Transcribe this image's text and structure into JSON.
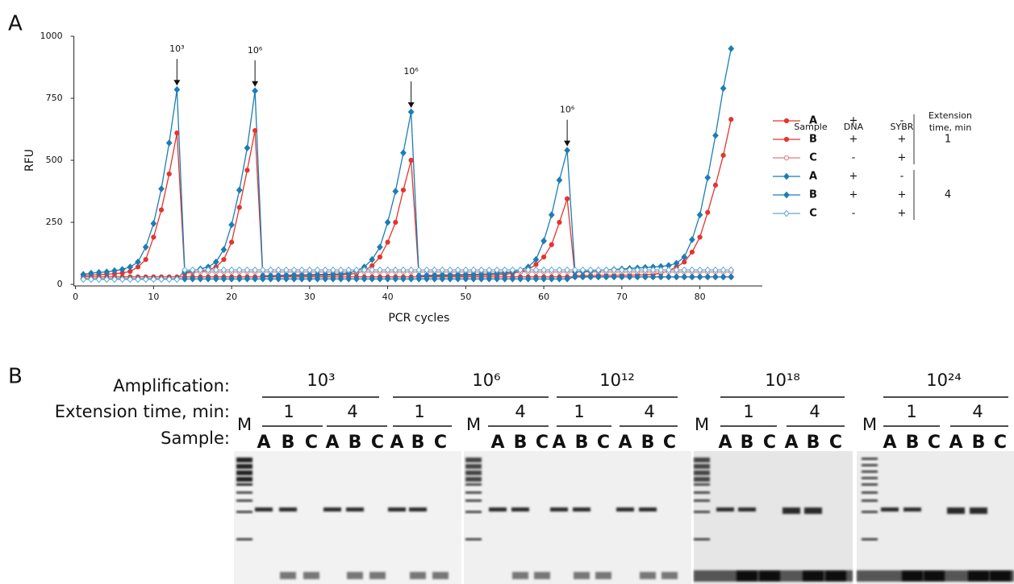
{
  "chart_data": {
    "type": "line",
    "panel": "A",
    "x_label": "PCR cycles",
    "y_label": "RFU",
    "xlim": [
      0,
      88
    ],
    "ylim": [
      0,
      1000
    ],
    "xticks": [
      0,
      10,
      20,
      30,
      40,
      50,
      60,
      70,
      80
    ],
    "yticks": [
      0,
      250,
      500,
      750,
      1000
    ],
    "grid": false,
    "x": [
      1,
      2,
      3,
      4,
      5,
      6,
      7,
      8,
      9,
      10,
      11,
      12,
      13,
      14,
      15,
      16,
      17,
      18,
      19,
      20,
      21,
      22,
      23,
      24,
      25,
      26,
      27,
      28,
      29,
      30,
      31,
      32,
      33,
      34,
      35,
      36,
      37,
      38,
      39,
      40,
      41,
      42,
      43,
      44,
      45,
      46,
      47,
      48,
      49,
      50,
      51,
      52,
      53,
      54,
      55,
      56,
      57,
      58,
      59,
      60,
      61,
      62,
      63,
      64,
      65,
      66,
      67,
      68,
      69,
      70,
      71,
      72,
      73,
      74,
      75,
      76,
      77,
      78,
      79,
      80,
      81,
      82,
      83,
      84
    ],
    "legend_headers": [
      "Sample",
      "DNA",
      "SYBR"
    ],
    "legend_group_header": [
      "Extension",
      "time, min"
    ],
    "series": [
      {
        "name": "A",
        "dna": "+",
        "sybr": "-",
        "color": "#e4352f",
        "marker": "circle",
        "fill": "solid",
        "values": [
          30,
          30,
          30,
          30,
          30,
          30,
          30,
          30,
          30,
          30,
          30,
          30,
          30,
          30,
          30,
          30,
          30,
          30,
          30,
          30,
          30,
          30,
          30,
          30,
          30,
          30,
          30,
          30,
          30,
          30,
          30,
          30,
          30,
          30,
          30,
          30,
          30,
          30,
          30,
          30,
          30,
          30,
          30,
          30,
          30,
          30,
          30,
          30,
          30,
          30,
          30,
          30,
          30,
          30,
          30,
          30,
          30,
          30,
          30,
          30,
          30,
          30,
          30,
          30,
          30,
          30,
          30,
          30,
          30,
          30,
          30,
          30,
          30,
          30,
          30,
          30,
          30,
          30,
          30,
          30,
          30,
          30,
          30,
          30
        ]
      },
      {
        "name": "B",
        "dna": "+",
        "sybr": "+",
        "color": "#e4352f",
        "marker": "circle",
        "fill": "solid",
        "values": [
          35,
          37,
          39,
          41,
          43,
          46,
          52,
          70,
          100,
          190,
          300,
          445,
          610,
          45,
          48,
          52,
          58,
          70,
          100,
          170,
          310,
          460,
          620,
          33,
          33,
          34,
          34,
          35,
          35,
          35,
          36,
          36,
          37,
          38,
          40,
          45,
          55,
          75,
          110,
          170,
          250,
          380,
          500,
          33,
          33,
          34,
          34,
          35,
          35,
          35,
          36,
          36,
          37,
          38,
          40,
          45,
          50,
          60,
          80,
          110,
          160,
          250,
          345,
          35,
          35,
          35,
          36,
          36,
          36,
          37,
          37,
          38,
          38,
          40,
          45,
          55,
          70,
          90,
          130,
          190,
          290,
          400,
          520,
          665
        ]
      },
      {
        "name": "C",
        "dna": "-",
        "sybr": "+",
        "color": "#e27b7b",
        "marker": "circle",
        "fill": "hollow",
        "values": [
          22,
          22,
          22,
          22,
          22,
          22,
          22,
          22,
          22,
          22,
          22,
          22,
          22,
          50,
          50,
          50,
          50,
          50,
          50,
          50,
          50,
          50,
          50,
          50,
          50,
          50,
          50,
          50,
          50,
          50,
          50,
          50,
          50,
          50,
          50,
          50,
          50,
          50,
          50,
          50,
          50,
          50,
          50,
          50,
          50,
          50,
          50,
          50,
          50,
          50,
          50,
          50,
          50,
          50,
          50,
          50,
          50,
          50,
          50,
          50,
          50,
          50,
          50,
          50,
          50,
          50,
          50,
          50,
          50,
          50,
          50,
          50,
          50,
          50,
          50,
          50,
          50,
          50,
          50,
          50,
          50,
          50,
          50,
          50
        ]
      },
      {
        "name": "A",
        "dna": "+",
        "sybr": "-",
        "color": "#1b7db6",
        "marker": "diamond",
        "fill": "solid",
        "values": [
          22,
          22,
          22,
          22,
          22,
          22,
          22,
          22,
          22,
          22,
          22,
          22,
          22,
          22,
          22,
          22,
          22,
          22,
          22,
          22,
          22,
          22,
          22,
          22,
          22,
          22,
          22,
          22,
          22,
          22,
          22,
          22,
          22,
          22,
          22,
          22,
          22,
          22,
          22,
          22,
          22,
          22,
          22,
          22,
          22,
          22,
          22,
          22,
          22,
          22,
          22,
          22,
          22,
          22,
          22,
          22,
          22,
          22,
          22,
          22,
          22,
          22,
          22,
          30,
          30,
          30,
          30,
          30,
          30,
          30,
          30,
          30,
          30,
          30,
          30,
          30,
          30,
          30,
          30,
          30,
          30,
          30,
          30,
          30
        ]
      },
      {
        "name": "B",
        "dna": "+",
        "sybr": "+",
        "color": "#1b7db6",
        "marker": "diamond",
        "fill": "solid",
        "values": [
          40,
          45,
          48,
          50,
          55,
          60,
          70,
          90,
          150,
          245,
          385,
          570,
          785,
          50,
          55,
          62,
          70,
          90,
          140,
          240,
          380,
          550,
          780,
          35,
          35,
          36,
          37,
          38,
          38,
          39,
          40,
          40,
          41,
          42,
          45,
          55,
          70,
          100,
          150,
          250,
          375,
          530,
          695,
          35,
          36,
          37,
          38,
          38,
          39,
          40,
          40,
          41,
          42,
          44,
          46,
          50,
          58,
          70,
          100,
          175,
          280,
          420,
          540,
          50,
          52,
          54,
          56,
          58,
          60,
          62,
          64,
          66,
          68,
          70,
          72,
          76,
          85,
          110,
          180,
          280,
          430,
          600,
          790,
          950
        ]
      },
      {
        "name": "C",
        "dna": "-",
        "sybr": "+",
        "color": "#5fa9d6",
        "marker": "diamond",
        "fill": "hollow",
        "values": [
          20,
          20,
          20,
          20,
          20,
          20,
          20,
          20,
          20,
          20,
          20,
          20,
          20,
          58,
          58,
          58,
          58,
          58,
          58,
          58,
          58,
          58,
          58,
          58,
          58,
          58,
          58,
          58,
          58,
          58,
          58,
          58,
          58,
          58,
          58,
          58,
          58,
          58,
          58,
          58,
          58,
          58,
          58,
          58,
          58,
          58,
          58,
          58,
          58,
          58,
          58,
          58,
          58,
          58,
          58,
          58,
          58,
          58,
          58,
          58,
          58,
          58,
          58,
          58,
          58,
          58,
          58,
          58,
          58,
          58,
          58,
          58,
          58,
          58,
          58,
          58,
          58,
          58,
          58,
          58,
          58,
          58,
          58,
          58
        ]
      }
    ],
    "extension_groups": [
      {
        "label": "1",
        "series": [
          0,
          1,
          2
        ]
      },
      {
        "label": "4",
        "series": [
          3,
          4,
          5
        ]
      }
    ],
    "annotations": [
      {
        "text": "10³",
        "x": 13
      },
      {
        "text": "10⁶",
        "x": 23
      },
      {
        "text": "10⁶",
        "x": 43
      },
      {
        "text": "10⁶",
        "x": 63
      }
    ]
  },
  "gel": {
    "label": "B",
    "row_labels": [
      "Amplification:",
      "Extension time, min:",
      "Sample:"
    ],
    "marker": "M",
    "groups": [
      {
        "amplification": "10³",
        "extensions": [
          {
            "time": "1",
            "samples": [
              "A",
              "B",
              "C"
            ]
          },
          {
            "time": "4",
            "samples": [
              "A",
              "B",
              "C"
            ]
          }
        ]
      },
      {
        "amplification": "10⁶",
        "extensions": [
          {
            "time": "1",
            "samples": [
              "A",
              "B",
              "C"
            ]
          },
          {
            "time": "4",
            "samples": [
              "A",
              "B",
              "C"
            ]
          }
        ]
      },
      {
        "amplification": "10¹²",
        "extensions": [
          {
            "time": "1",
            "samples": [
              "A",
              "B",
              "C"
            ]
          },
          {
            "time": "4",
            "samples": [
              "A",
              "B",
              "C"
            ]
          }
        ]
      },
      {
        "amplification": "10¹⁸",
        "extensions": [
          {
            "time": "1",
            "samples": [
              "A",
              "B",
              "C"
            ]
          },
          {
            "time": "4",
            "samples": [
              "A",
              "B",
              "C"
            ]
          }
        ]
      },
      {
        "amplification": "10²⁴",
        "extensions": [
          {
            "time": "1",
            "samples": [
              "A",
              "B",
              "C"
            ]
          },
          {
            "time": "4",
            "samples": [
              "A",
              "B",
              "C"
            ]
          }
        ]
      }
    ]
  }
}
